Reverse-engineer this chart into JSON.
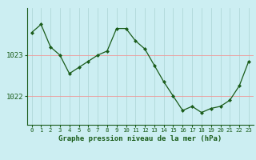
{
  "x": [
    0,
    1,
    2,
    3,
    4,
    5,
    6,
    7,
    8,
    9,
    10,
    11,
    12,
    13,
    14,
    15,
    16,
    17,
    18,
    19,
    20,
    21,
    22,
    23
  ],
  "y": [
    1023.55,
    1023.75,
    1023.2,
    1023.0,
    1022.55,
    1022.7,
    1022.85,
    1023.0,
    1023.1,
    1023.65,
    1023.65,
    1023.35,
    1023.15,
    1022.75,
    1022.35,
    1022.0,
    1021.65,
    1021.75,
    1021.6,
    1021.7,
    1021.75,
    1021.9,
    1022.25,
    1022.85
  ],
  "xlabel": "Graphe pression niveau de la mer (hPa)",
  "background_color": "#cceef2",
  "line_color": "#1a5c1a",
  "marker_color": "#1a5c1a",
  "grid_color_v": "#b0d8d8",
  "grid_color_h": "#ee9999",
  "yticks": [
    1022,
    1023
  ],
  "ylim": [
    1021.3,
    1024.15
  ],
  "xlim": [
    -0.5,
    23.5
  ]
}
